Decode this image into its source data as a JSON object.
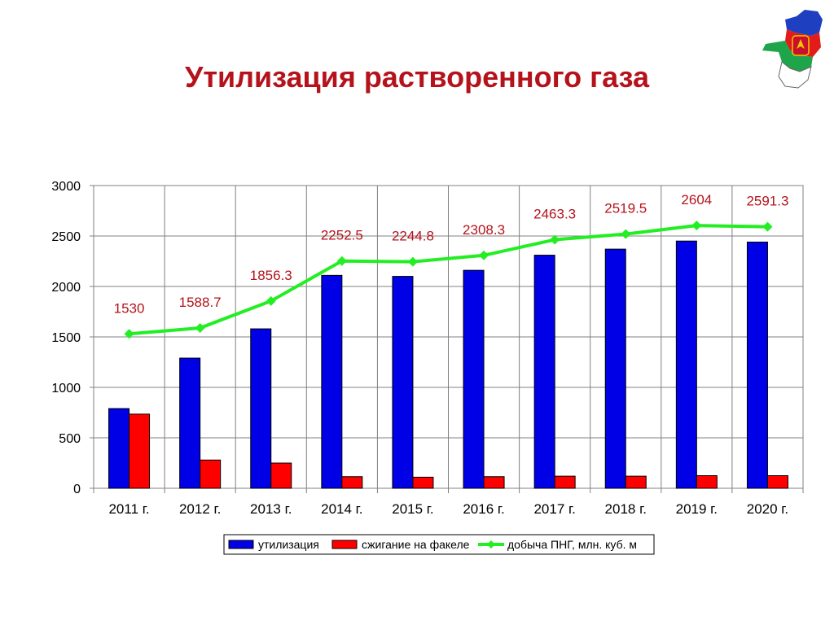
{
  "title": "Утилизация растворенного газа",
  "colors": {
    "title": "#b5121b",
    "bar_utilization": "#0000e6",
    "bar_flaring": "#ff0000",
    "line_png": "#22ee22",
    "line_labels": "#b5121b"
  },
  "icons": {
    "emblem": "komi-republic-map-emblem-icon"
  },
  "chart_data": {
    "type": "bar",
    "categories": [
      "2011 г.",
      "2012 г.",
      "2013 г.",
      "2014 г.",
      "2015 г.",
      "2016 г.",
      "2017 г.",
      "2018 г.",
      "2019 г.",
      "2020 г."
    ],
    "series": [
      {
        "name": "утилизация",
        "type": "bar",
        "values": [
          790,
          1290,
          1580,
          2110,
          2100,
          2160,
          2310,
          2370,
          2450,
          2440
        ]
      },
      {
        "name": "сжигание на факеле",
        "type": "bar",
        "values": [
          735,
          280,
          250,
          115,
          110,
          115,
          120,
          120,
          125,
          125
        ]
      },
      {
        "name": "добыча ПНГ, млн. куб. м",
        "type": "line",
        "values": [
          1530,
          1588.7,
          1856.3,
          2252.5,
          2244.8,
          2308.3,
          2463.3,
          2519.5,
          2604,
          2591.3
        ]
      }
    ],
    "line_labels": [
      "1530",
      "1588.7",
      "1856.3",
      "2252.5",
      "2244.8",
      "2308.3",
      "2463.3",
      "2519.5",
      "2604",
      "2591.3"
    ],
    "y_ticks": [
      "0",
      "500",
      "1000",
      "1500",
      "2000",
      "2500",
      "3000"
    ],
    "ylim": [
      0,
      3000
    ],
    "grid": true,
    "legend_position": "bottom"
  }
}
